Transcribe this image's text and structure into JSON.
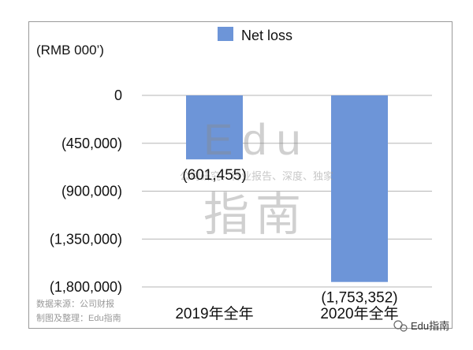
{
  "chart_data": {
    "type": "bar",
    "unit_label": "(RMB 000’)",
    "categories": [
      "2019年全年",
      "2020年全年"
    ],
    "series": [
      {
        "name": "Net loss",
        "values": [
          -601455,
          -1753352
        ],
        "color": "#6d95d8"
      }
    ],
    "data_labels": [
      "(601,455)",
      "(1,753,352)"
    ],
    "y_ticks": [
      {
        "value": 0,
        "label": "0"
      },
      {
        "value": -450000,
        "label": "(450,000)"
      },
      {
        "value": -900000,
        "label": "(900,000)"
      },
      {
        "value": -1350000,
        "label": "(1,350,000)"
      },
      {
        "value": -1800000,
        "label": "(1,800,000)"
      }
    ],
    "ylim": [
      -1800000,
      0
    ],
    "grid": true,
    "legend_position": "top-center"
  },
  "source_note": [
    "数据来源：公司财报",
    "制图及整理：Edu指南"
  ],
  "watermark": {
    "line1": "Edu",
    "line2": "指南",
    "tagline": "公司研究、行业报告、深度、独家"
  },
  "channel_badge": "Edu指南"
}
